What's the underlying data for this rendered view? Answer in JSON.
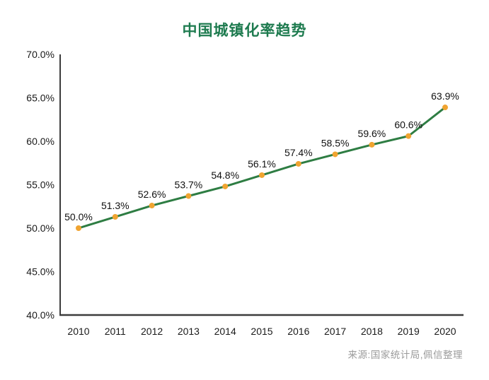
{
  "chart_data": {
    "type": "line",
    "title": "中国城镇化率趋势",
    "categories": [
      "2010",
      "2011",
      "2012",
      "2013",
      "2014",
      "2015",
      "2016",
      "2017",
      "2018",
      "2019",
      "2020"
    ],
    "values": [
      50.0,
      51.3,
      52.6,
      53.7,
      54.8,
      56.1,
      57.4,
      58.5,
      59.6,
      60.6,
      63.9
    ],
    "data_labels": [
      "50.0%",
      "51.3%",
      "52.6%",
      "53.7%",
      "54.8%",
      "56.1%",
      "57.4%",
      "58.5%",
      "59.6%",
      "60.6%",
      "63.9%"
    ],
    "xlabel": "",
    "ylabel": "",
    "ylim": [
      40,
      70
    ],
    "y_tick_step": 5,
    "y_tick_labels": [
      "40.0%",
      "45.0%",
      "50.0%",
      "55.0%",
      "60.0%",
      "65.0%",
      "70.0%"
    ],
    "grid": false,
    "legend": "none",
    "source_note": "来源:国家统计局,佩信整理",
    "colors": {
      "title": "#1e7b4f",
      "line": "#2e7d43",
      "marker": "#f0a431",
      "axis": "#3c3c3c",
      "tick_label": "#1a1a1a",
      "data_label": "#111111",
      "source": "#9b9b9b"
    }
  }
}
